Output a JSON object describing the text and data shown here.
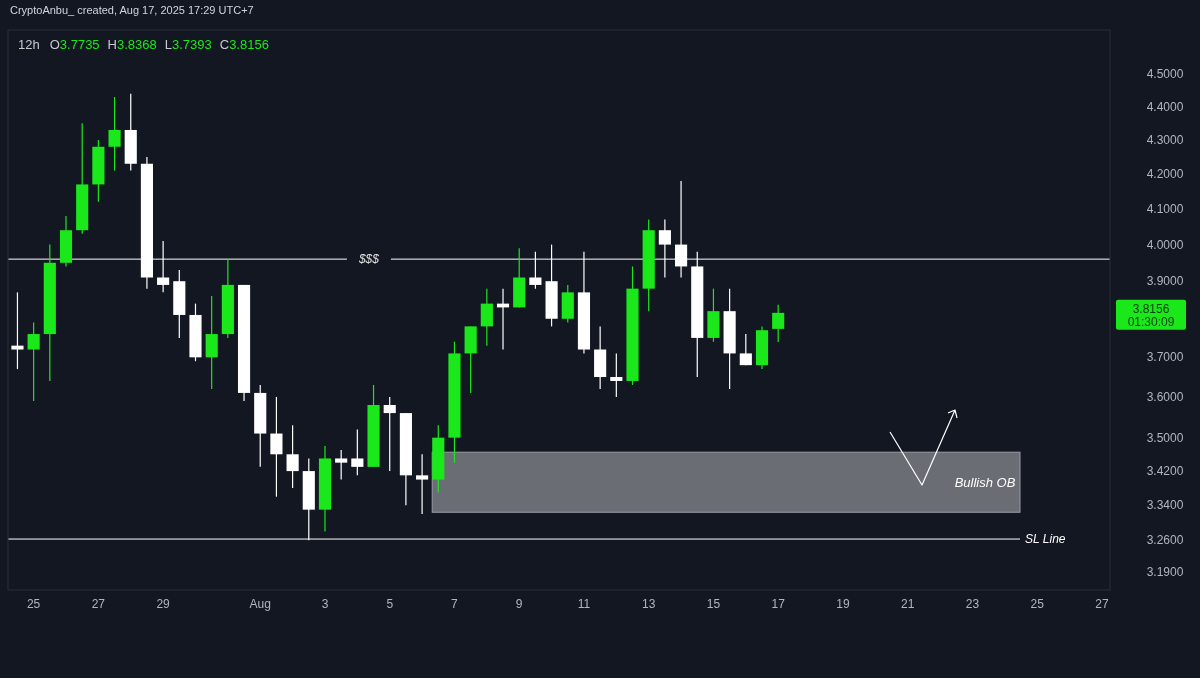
{
  "chart_data": {
    "type": "candlestick",
    "title": "12h",
    "log": true,
    "annotations": [
      "CryptoAnbu_ created, Aug 17, 2025 17:29 UTC+7",
      "01:30:09",
      "O3.7735",
      "H3.8368",
      "L3.7393",
      "C3.8156",
      "3.8156"
    ],
    "x": [
      "2025-07-24T12:00",
      "2025-07-25T00:00",
      "2025-07-25T12:00",
      "2025-07-26T00:00",
      "2025-07-26T12:00",
      "2025-07-27T00:00",
      "2025-07-27T12:00",
      "2025-07-28T00:00",
      "2025-07-28T12:00",
      "2025-07-29T00:00",
      "2025-07-29T12:00",
      "2025-07-30T00:00",
      "2025-07-30T12:00",
      "2025-07-31T00:00",
      "2025-07-31T12:00",
      "2025-08-01T00:00",
      "2025-08-01T12:00",
      "2025-08-02T00:00",
      "2025-08-02T12:00",
      "2025-08-03T00:00",
      "2025-08-03T12:00",
      "2025-08-04T00:00",
      "2025-08-04T12:00",
      "2025-08-05T00:00",
      "2025-08-05T12:00",
      "2025-08-06T00:00",
      "2025-08-06T12:00",
      "2025-08-07T00:00",
      "2025-08-07T12:00",
      "2025-08-08T00:00",
      "2025-08-08T12:00",
      "2025-08-09T00:00",
      "2025-08-09T12:00",
      "2025-08-10T00:00",
      "2025-08-10T12:00",
      "2025-08-11T00:00",
      "2025-08-11T12:00",
      "2025-08-12T00:00",
      "2025-08-12T12:00",
      "2025-08-13T00:00",
      "2025-08-13T12:00",
      "2025-08-14T00:00",
      "2025-08-14T12:00",
      "2025-08-15T00:00",
      "2025-08-15T12:00",
      "2025-08-16T00:00",
      "2025-08-16T12:00",
      "2025-08-17T00:00"
    ],
    "ohlc": [
      [
        3.73,
        3.87,
        3.67,
        3.72
      ],
      [
        3.72,
        3.79,
        3.59,
        3.76
      ],
      [
        3.76,
        4.0,
        3.64,
        3.95
      ],
      [
        3.95,
        4.08,
        3.94,
        4.04
      ],
      [
        4.04,
        4.35,
        4.03,
        4.17
      ],
      [
        4.17,
        4.3,
        4.12,
        4.28
      ],
      [
        4.28,
        4.43,
        4.21,
        4.33
      ],
      [
        4.33,
        4.44,
        4.21,
        4.23
      ],
      [
        4.23,
        4.25,
        3.88,
        3.91
      ],
      [
        3.91,
        4.01,
        3.87,
        3.89
      ],
      [
        3.9,
        3.93,
        3.75,
        3.81
      ],
      [
        3.81,
        3.84,
        3.69,
        3.7
      ],
      [
        3.7,
        3.86,
        3.62,
        3.76
      ],
      [
        3.76,
        3.96,
        3.75,
        3.89
      ],
      [
        3.89,
        3.89,
        3.59,
        3.61
      ],
      [
        3.61,
        3.63,
        3.43,
        3.51
      ],
      [
        3.51,
        3.6,
        3.36,
        3.46
      ],
      [
        3.46,
        3.53,
        3.38,
        3.42
      ],
      [
        3.42,
        3.45,
        3.26,
        3.33
      ],
      [
        3.33,
        3.48,
        3.28,
        3.45
      ],
      [
        3.45,
        3.47,
        3.4,
        3.44
      ],
      [
        3.45,
        3.52,
        3.41,
        3.43
      ],
      [
        3.43,
        3.63,
        3.43,
        3.58
      ],
      [
        3.58,
        3.6,
        3.42,
        3.56
      ],
      [
        3.56,
        3.56,
        3.34,
        3.41
      ],
      [
        3.41,
        3.46,
        3.32,
        3.4
      ],
      [
        3.4,
        3.53,
        3.37,
        3.5
      ],
      [
        3.5,
        3.74,
        3.44,
        3.71
      ],
      [
        3.71,
        3.78,
        3.61,
        3.78
      ],
      [
        3.78,
        3.88,
        3.73,
        3.84
      ],
      [
        3.84,
        3.88,
        3.72,
        3.83
      ],
      [
        3.83,
        3.99,
        3.83,
        3.91
      ],
      [
        3.91,
        3.98,
        3.88,
        3.89
      ],
      [
        3.9,
        4.0,
        3.78,
        3.8
      ],
      [
        3.8,
        3.89,
        3.79,
        3.87
      ],
      [
        3.87,
        3.98,
        3.71,
        3.72
      ],
      [
        3.72,
        3.78,
        3.62,
        3.65
      ],
      [
        3.65,
        3.71,
        3.6,
        3.64
      ],
      [
        3.64,
        3.94,
        3.63,
        3.88
      ],
      [
        3.88,
        4.07,
        3.82,
        4.04
      ],
      [
        4.04,
        4.07,
        3.91,
        4.0
      ],
      [
        4.0,
        4.18,
        3.91,
        3.94
      ],
      [
        3.94,
        3.98,
        3.65,
        3.75
      ],
      [
        3.75,
        3.88,
        3.74,
        3.82
      ],
      [
        3.82,
        3.88,
        3.62,
        3.71
      ],
      [
        3.71,
        3.76,
        3.68,
        3.68
      ],
      [
        3.68,
        3.78,
        3.67,
        3.77
      ],
      [
        3.7735,
        3.8368,
        3.7393,
        3.8156
      ]
    ],
    "colors": [
      "#ffffff",
      "#1be81b",
      "#1be81b",
      "#1be81b",
      "#1be81b",
      "#1be81b",
      "#1be81b",
      "#ffffff",
      "#ffffff",
      "#ffffff",
      "#ffffff",
      "#ffffff",
      "#1be81b",
      "#1be81b",
      "#ffffff",
      "#ffffff",
      "#ffffff",
      "#ffffff",
      "#ffffff",
      "#1be81b",
      "#ffffff",
      "#ffffff",
      "#1be81b",
      "#ffffff",
      "#ffffff",
      "#ffffff",
      "#1be81b",
      "#1be81b",
      "#1be81b",
      "#1be81b",
      "#ffffff",
      "#1be81b",
      "#ffffff",
      "#ffffff",
      "#1be81b",
      "#ffffff",
      "#ffffff",
      "#ffffff",
      "#1be81b",
      "#1be81b",
      "#ffffff",
      "#ffffff",
      "#ffffff",
      "#1be81b",
      "#ffffff",
      "#ffffff",
      "#1be81b",
      "#1be81b"
    ],
    "xlim": [
      "2025-07-24T05:00",
      "2025-08-27T06:00"
    ],
    "xticks": [
      {
        "value": "2025-07-25",
        "label": "25"
      },
      {
        "value": "2025-07-27",
        "label": "27"
      },
      {
        "value": "2025-07-29",
        "label": "29"
      },
      {
        "value": "2025-08-01",
        "label": "Aug"
      },
      {
        "value": "2025-08-03",
        "label": "3"
      },
      {
        "value": "2025-08-05",
        "label": "5"
      },
      {
        "value": "2025-08-07",
        "label": "7"
      },
      {
        "value": "2025-08-09",
        "label": "9"
      },
      {
        "value": "2025-08-11",
        "label": "11"
      },
      {
        "value": "2025-08-13",
        "label": "13"
      },
      {
        "value": "2025-08-15",
        "label": "15"
      },
      {
        "value": "2025-08-17",
        "label": "17"
      },
      {
        "value": "2025-08-19",
        "label": "19"
      },
      {
        "value": "2025-08-21",
        "label": "21"
      },
      {
        "value": "2025-08-23",
        "label": "23"
      },
      {
        "value": "2025-08-25",
        "label": "25"
      },
      {
        "value": "2025-08-27",
        "label": "27"
      }
    ],
    "ylim": [
      3.15,
      4.64
    ],
    "yticks": [
      {
        "value": 4.5,
        "label": "4.5000"
      },
      {
        "value": 4.4,
        "label": "4.4000"
      },
      {
        "value": 4.3,
        "label": "4.3000"
      },
      {
        "value": 4.2,
        "label": "4.2000"
      },
      {
        "value": 4.1,
        "label": "4.1000"
      },
      {
        "value": 4.0,
        "label": "4.0000"
      },
      {
        "value": 3.9,
        "label": "3.9000"
      },
      {
        "value": 3.7,
        "label": "3.7000"
      },
      {
        "value": 3.6,
        "label": "3.6000"
      },
      {
        "value": 3.5,
        "label": "3.5000"
      },
      {
        "value": 3.42,
        "label": "3.4200"
      },
      {
        "value": 3.34,
        "label": "3.3400"
      },
      {
        "value": 3.26,
        "label": "3.2600"
      },
      {
        "value": 3.19,
        "label": "3.1900"
      }
    ],
    "ref_lines": [
      {
        "axis": "y",
        "value": 3.96,
        "label": "$$$",
        "color": "#ffffff"
      },
      {
        "axis": "y",
        "value": 3.263,
        "label": "SL Line",
        "color": "#ffffff"
      }
    ],
    "bands": [
      {
        "axis": "y",
        "from": 3.324,
        "to": 3.465,
        "label": "Bullish OB",
        "color": "#6b6d74"
      }
    ]
  }
}
